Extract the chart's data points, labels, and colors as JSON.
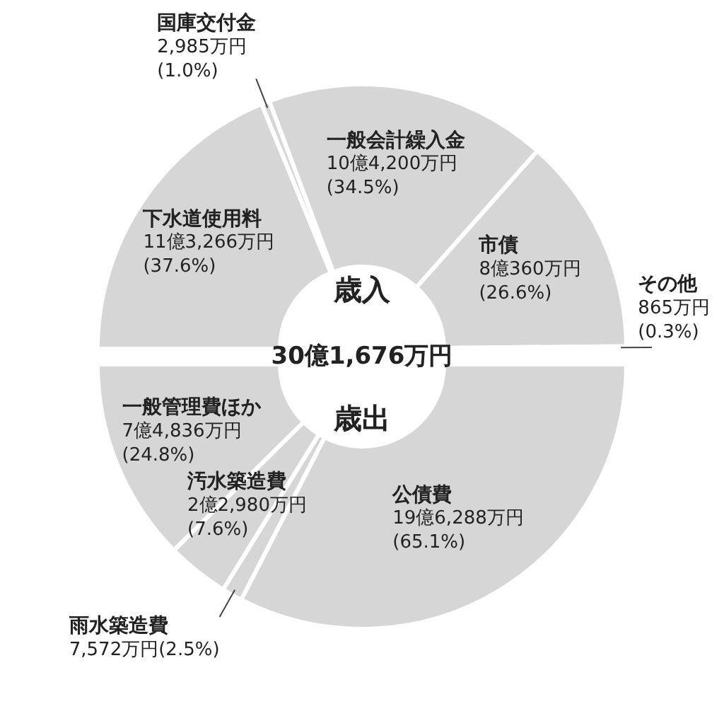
{
  "chart_data": [
    {
      "type": "donut",
      "title": "歳入",
      "categories": [
        "下水道使用料",
        "国庫交付金",
        "一般会計繰入金",
        "市債",
        "その他"
      ],
      "values": [
        37.6,
        1.0,
        34.5,
        26.6,
        0.3
      ],
      "colors": [
        "#d6d6d6",
        "#d6d6d6",
        "#d6d6d6",
        "#d6d6d6",
        "#d6d6d6"
      ],
      "value_labels": [
        "11億3,266万円 (37.6%)",
        "2,985万円 (1.0%)",
        "10億4,200万円 (34.5%)",
        "8億360万円 (26.6%)",
        "865万円 (0.3%)"
      ],
      "annotations": [
        "30億1,676万円"
      ]
    },
    {
      "type": "donut",
      "title": "歳出",
      "categories": [
        "公債費",
        "雨水築造費",
        "汚水築造費",
        "一般管理費ほか"
      ],
      "values": [
        65.1,
        2.5,
        7.6,
        24.8
      ],
      "colors": [
        "#d6d6d6",
        "#d6d6d6",
        "#d6d6d6",
        "#d6d6d6"
      ],
      "value_labels": [
        "19億6,288万円 (65.1%)",
        "7,572万円(2.5%)",
        "2億2,980万円 (7.6%)",
        "7億4,836万円 (24.8%)"
      ]
    }
  ]
}
